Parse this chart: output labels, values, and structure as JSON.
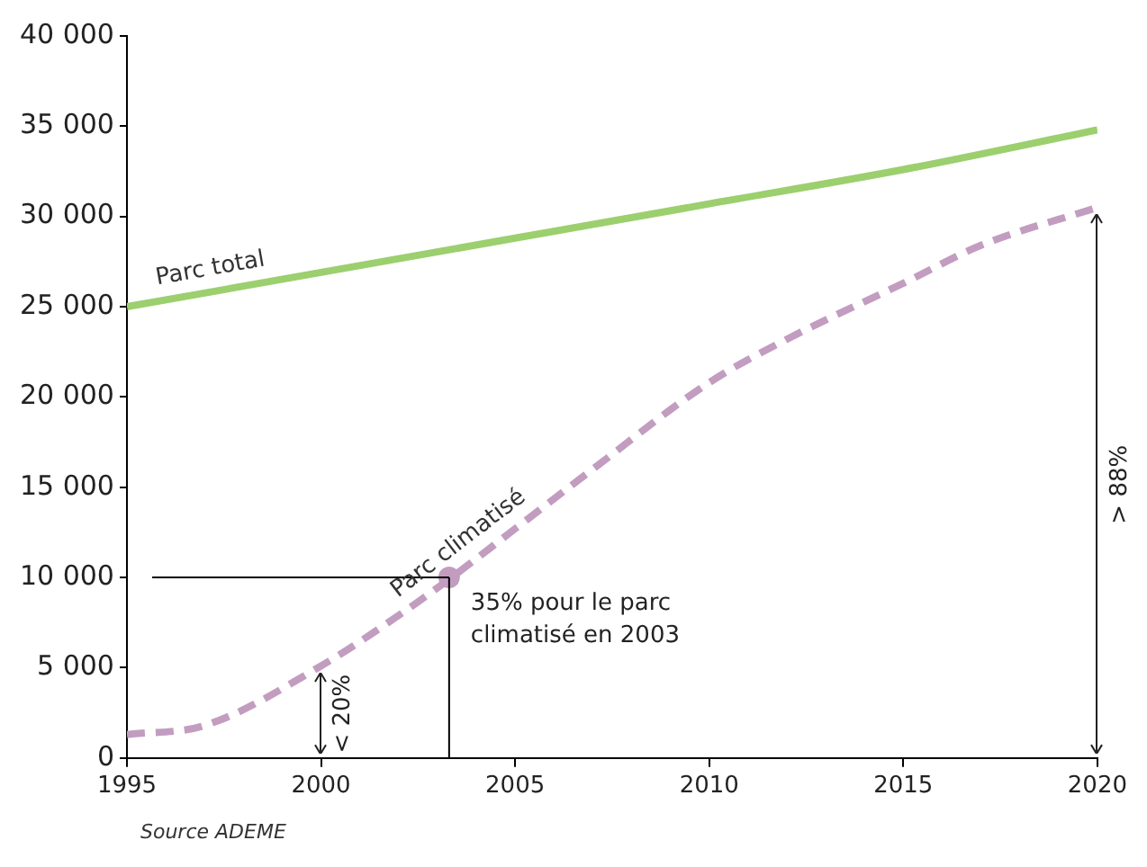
{
  "chart_data": {
    "type": "line",
    "xlim": [
      1995,
      2020
    ],
    "xticks": [
      1995,
      2000,
      2005,
      2010,
      2015,
      2020
    ],
    "ylim": [
      0,
      40000
    ],
    "yticks": [
      0,
      {
        "value": 5000,
        "label": "5 000"
      },
      {
        "value": 10000,
        "label": "10 000"
      },
      {
        "value": 15000,
        "label": "15 000"
      },
      {
        "value": 20000,
        "label": "20 000"
      },
      {
        "value": 25000,
        "label": "25 000"
      },
      {
        "value": 30000,
        "label": "30 000"
      },
      {
        "value": 35000,
        "label": "35 000"
      },
      {
        "value": 40000,
        "label": "40 000"
      }
    ],
    "grid": false,
    "legend": false,
    "series": [
      {
        "name": "Parc total",
        "color": "#9ccf6e",
        "line_style": "solid",
        "marker": "none",
        "x": [
          1995,
          2000,
          2005,
          2010,
          2015,
          2020
        ],
        "values": [
          25000,
          26900,
          28800,
          30700,
          32600,
          34800
        ]
      },
      {
        "name": "Parc climatisé",
        "color": "#c29dc0",
        "line_style": "dashed",
        "marker": "none",
        "x": [
          1995,
          1997,
          2000,
          2002,
          2003.3,
          2005,
          2007,
          2010,
          2012,
          2015,
          2017,
          2020
        ],
        "values": [
          1300,
          1800,
          5100,
          7900,
          9900,
          12700,
          16000,
          20800,
          23200,
          26300,
          28400,
          30500
        ]
      },
      {
        "type": "scatter",
        "color": "#c29dc0",
        "marker": "circle",
        "x": [
          2003.3
        ],
        "values": [
          10000
        ]
      }
    ],
    "ref_lines": [
      {
        "axis": "y",
        "value": 10000,
        "color": "#000000",
        "line_style": "solid"
      },
      {
        "axis": "x",
        "value": 2003.3,
        "color": "#000000",
        "line_style": "solid"
      }
    ],
    "annotations": [
      {
        "text": "35% pour le parc climatisé en 2003",
        "x": 2003.3,
        "y": 10000
      },
      "< 20%",
      "> 88%",
      "Source ADEME"
    ]
  }
}
